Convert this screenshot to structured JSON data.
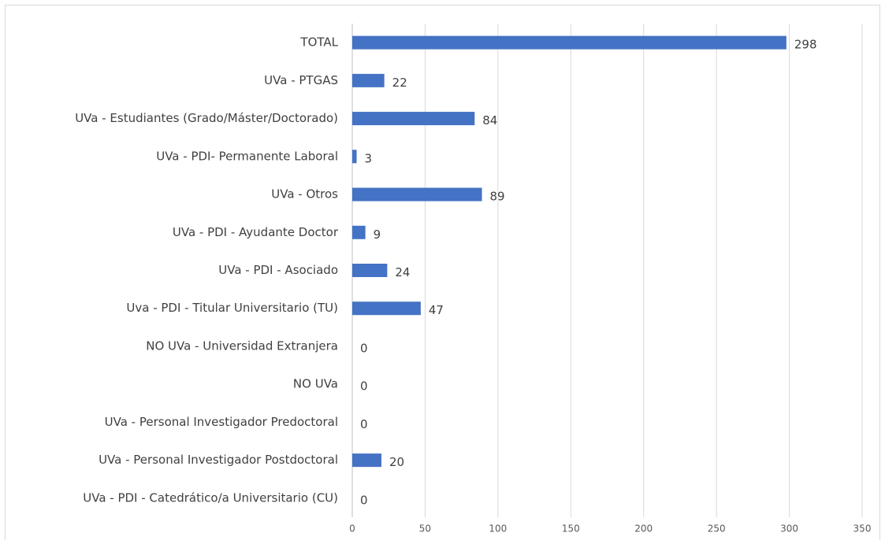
{
  "chart_data": {
    "type": "bar",
    "orientation": "horizontal",
    "categories": [
      "TOTAL",
      "UVa - PTGAS",
      "UVa -  Estudiantes (Grado/Máster/Doctorado)",
      "UVa - PDI- Permanente Laboral",
      "UVa - Otros",
      "UVa - PDI - Ayudante Doctor",
      "UVa - PDI - Asociado",
      "Uva - PDI - Titular Universitario (TU)",
      "NO UVa - Universidad Extranjera",
      "NO UVa",
      "UVa - Personal Investigador Predoctoral",
      "UVa - Personal Investigador Postdoctoral",
      "UVa - PDI - Catedrático/a Universitario (CU)"
    ],
    "values": [
      298,
      22,
      84,
      3,
      89,
      9,
      24,
      47,
      0,
      0,
      0,
      20,
      0
    ],
    "color": "#4472c4",
    "xlim": [
      0,
      350
    ],
    "xticks": [
      0,
      50,
      100,
      150,
      200,
      250,
      300,
      350
    ],
    "grid": true
  }
}
